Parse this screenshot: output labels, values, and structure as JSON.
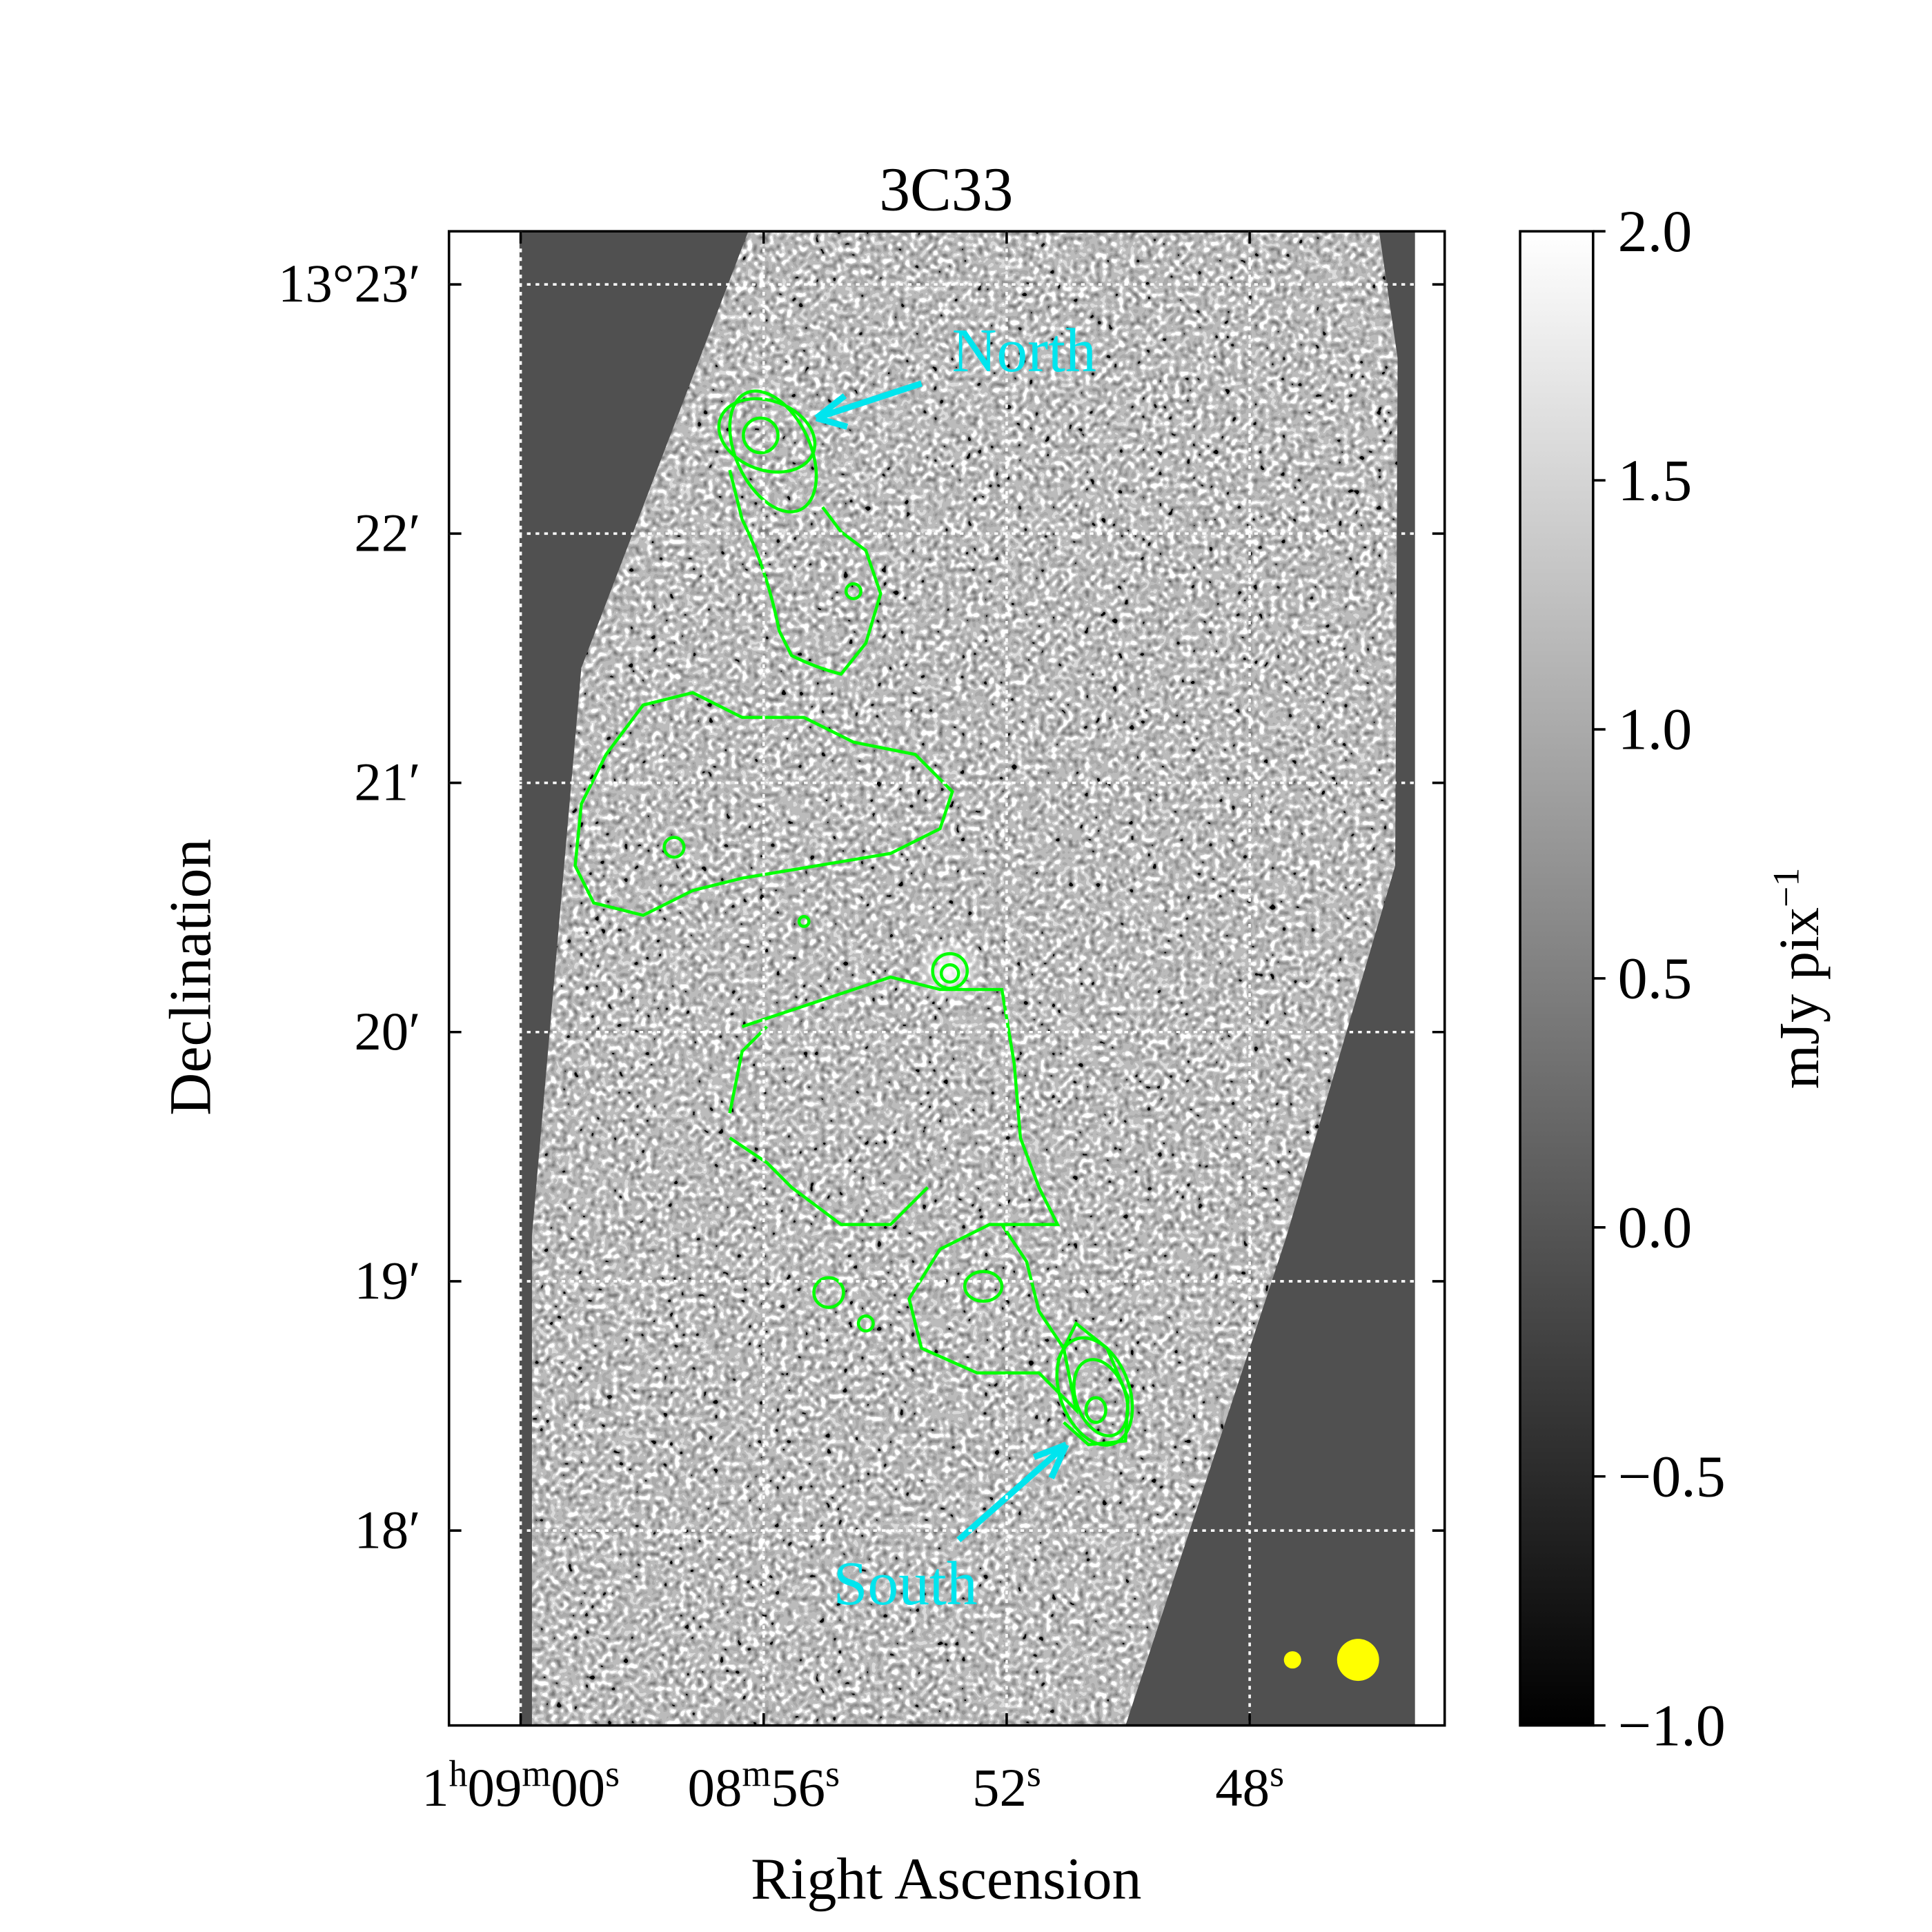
{
  "chart_data": {
    "type": "image",
    "title": "3C33",
    "xlabel": "Right Ascension",
    "ylabel": "Declination",
    "xlim": [
      61.18,
      44.79
    ],
    "xticks": [
      {
        "value": 60,
        "label": "1h09m00s"
      },
      {
        "value": 56,
        "label": "08m56s"
      },
      {
        "value": 52,
        "label": "52s"
      },
      {
        "value": 48,
        "label": "48s"
      }
    ],
    "ylim": [
      17.218,
      23.213
    ],
    "yticks": [
      {
        "value": 18,
        "label": "18′"
      },
      {
        "value": 19,
        "label": "19′"
      },
      {
        "value": 20,
        "label": "20′"
      },
      {
        "value": 21,
        "label": "21′"
      },
      {
        "value": 22,
        "label": "22′"
      },
      {
        "value": 23,
        "label": "13°23′"
      }
    ],
    "grid": true,
    "contour_color": "#00ff00",
    "annotation_color": "#00e5ee",
    "colorbar": {
      "label": "mJy pix−1",
      "lim": [
        -1,
        2
      ],
      "ticks": [
        {
          "value": -1,
          "label": "−1.0"
        },
        {
          "value": -0.5,
          "label": "−0.5"
        },
        {
          "value": 0,
          "label": "0.0"
        },
        {
          "value": 0.5,
          "label": "0.5"
        },
        {
          "value": 1,
          "label": "1.0"
        },
        {
          "value": 1.5,
          "label": "1.5"
        },
        {
          "value": 2,
          "label": "2.0"
        }
      ]
    },
    "annotations": [
      {
        "text": "North"
      },
      {
        "text": "South"
      }
    ]
  }
}
